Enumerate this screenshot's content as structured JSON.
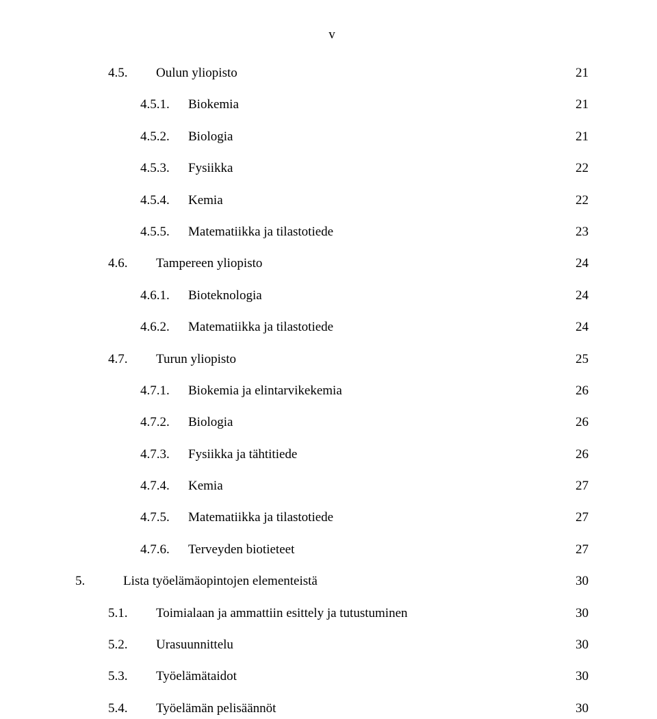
{
  "header": {
    "roman": "v"
  },
  "toc": {
    "entries": [
      {
        "num": "4.5.",
        "title": "Oulun yliopisto",
        "page": "21",
        "indent": 1
      },
      {
        "num": "4.5.1.",
        "title": "Biokemia",
        "page": "21",
        "indent": 2
      },
      {
        "num": "4.5.2.",
        "title": "Biologia",
        "page": "21",
        "indent": 2
      },
      {
        "num": "4.5.3.",
        "title": "Fysiikka",
        "page": "22",
        "indent": 2
      },
      {
        "num": "4.5.4.",
        "title": "Kemia",
        "page": "22",
        "indent": 2
      },
      {
        "num": "4.5.5.",
        "title": "Matematiikka ja tilastotiede",
        "page": "23",
        "indent": 2
      },
      {
        "num": "4.6.",
        "title": "Tampereen yliopisto",
        "page": "24",
        "indent": 1
      },
      {
        "num": "4.6.1.",
        "title": "Bioteknologia",
        "page": "24",
        "indent": 2
      },
      {
        "num": "4.6.2.",
        "title": "Matematiikka ja tilastotiede",
        "page": "24",
        "indent": 2
      },
      {
        "num": "4.7.",
        "title": "Turun yliopisto",
        "page": "25",
        "indent": 1
      },
      {
        "num": "4.7.1.",
        "title": "Biokemia ja elintarvikekemia",
        "page": "26",
        "indent": 2
      },
      {
        "num": "4.7.2.",
        "title": "Biologia",
        "page": "26",
        "indent": 2
      },
      {
        "num": "4.7.3.",
        "title": "Fysiikka ja tähtitiede",
        "page": "26",
        "indent": 2
      },
      {
        "num": "4.7.4.",
        "title": "Kemia",
        "page": "27",
        "indent": 2
      },
      {
        "num": "4.7.5.",
        "title": "Matematiikka ja tilastotiede",
        "page": "27",
        "indent": 2
      },
      {
        "num": "4.7.6.",
        "title": "Terveyden biotieteet",
        "page": "27",
        "indent": 2
      },
      {
        "num": "5.",
        "title": "Lista työelämäopintojen elementeistä",
        "page": "30",
        "indent": 0
      },
      {
        "num": "5.1.",
        "title": "Toimialaan ja ammattiin esittely ja tutustuminen",
        "page": "30",
        "indent": 1
      },
      {
        "num": "5.2.",
        "title": "Urasuunnittelu",
        "page": "30",
        "indent": 1
      },
      {
        "num": "5.3.",
        "title": "Työelämätaidot",
        "page": "30",
        "indent": 1
      },
      {
        "num": "5.4.",
        "title": "Työelämän pelisäännöt",
        "page": "30",
        "indent": 1
      }
    ]
  }
}
